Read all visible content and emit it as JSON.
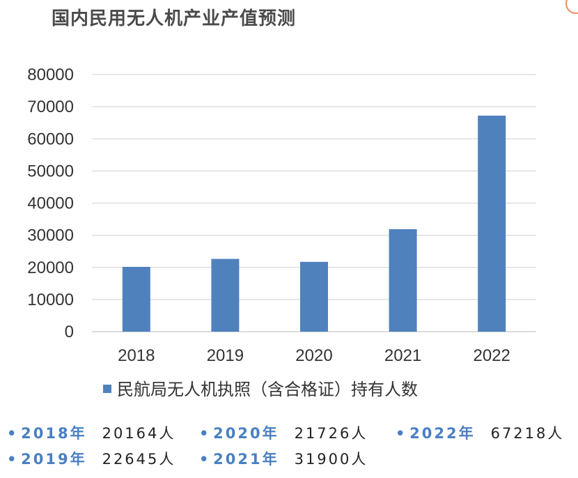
{
  "chart_data": {
    "type": "bar",
    "title": "国内民用无人机产业产值预测",
    "categories": [
      "2018",
      "2019",
      "2020",
      "2021",
      "2022"
    ],
    "series": [
      {
        "name": "民航局无人机执照（含合格证）持有人数",
        "values": [
          20164,
          22645,
          21726,
          31900,
          67218
        ],
        "color": "#4f81bd"
      }
    ],
    "ylim": [
      0,
      80000
    ],
    "yticks": [
      "0",
      "10000",
      "20000",
      "30000",
      "40000",
      "50000",
      "60000",
      "70000",
      "80000"
    ],
    "grid": true,
    "legend_position": "bottom"
  },
  "stats": [
    {
      "bullet": "•",
      "year": "2018年",
      "count": "20164人"
    },
    {
      "bullet": "•",
      "year": "2020年",
      "count": "21726人"
    },
    {
      "bullet": "•",
      "year": "2022年",
      "count": "67218人"
    },
    {
      "bullet": "•",
      "year": "2019年",
      "count": "22645人"
    },
    {
      "bullet": "•",
      "year": "2021年",
      "count": "31900人"
    }
  ]
}
